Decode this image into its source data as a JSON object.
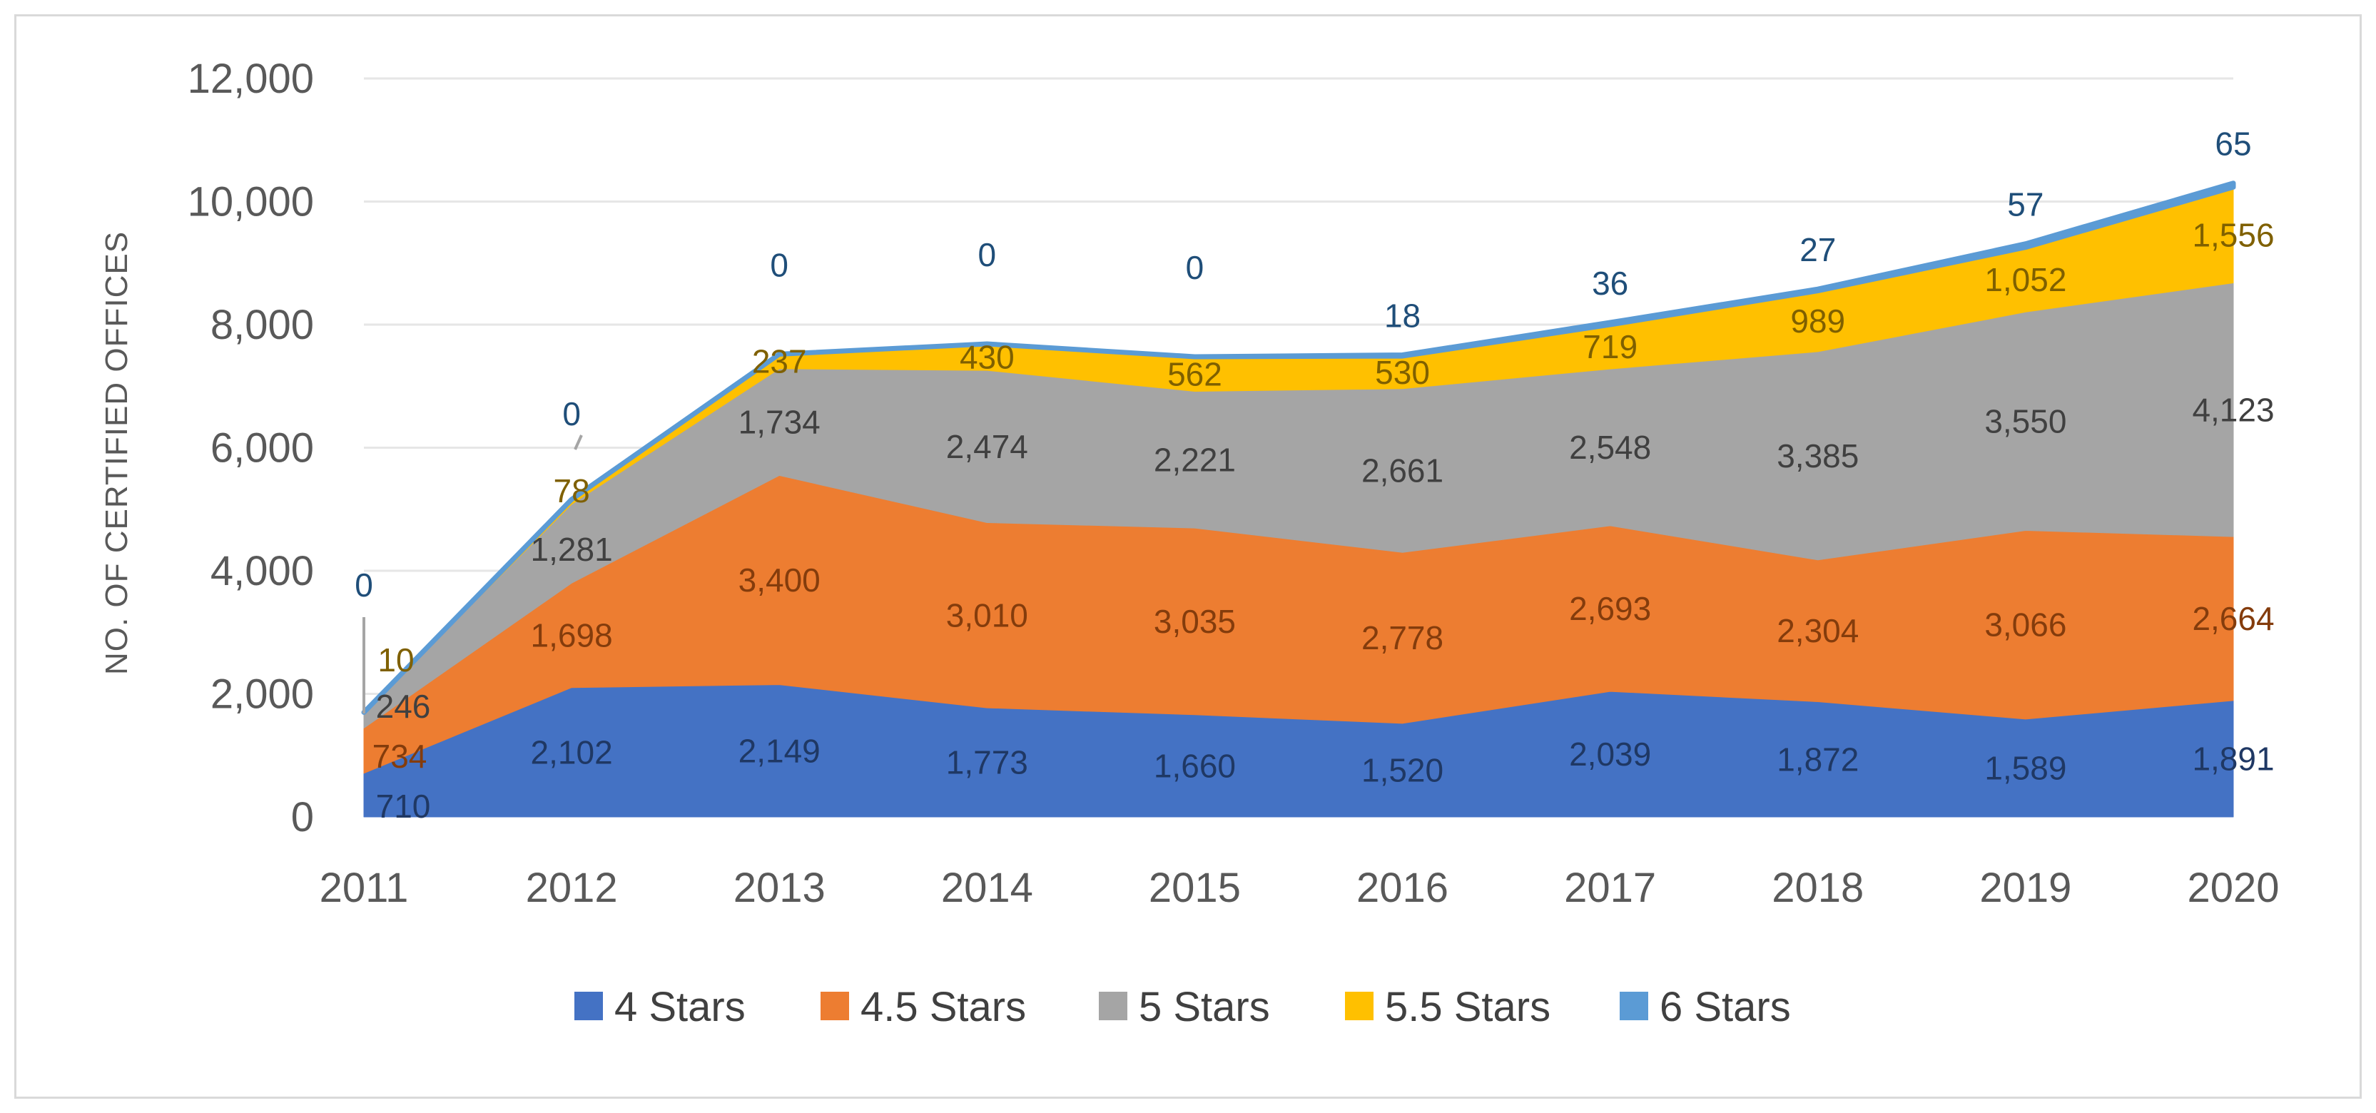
{
  "chart_data": {
    "type": "area",
    "stacked": true,
    "title": "",
    "xlabel": "",
    "ylabel": "NO. OF CERTIFIED OFFICES",
    "ylim": [
      0,
      12000
    ],
    "yticks": [
      0,
      2000,
      4000,
      6000,
      8000,
      10000,
      12000
    ],
    "ytick_labels": [
      "0",
      "2,000",
      "4,000",
      "6,000",
      "8,000",
      "10,000",
      "12,000"
    ],
    "categories": [
      "2011",
      "2012",
      "2013",
      "2014",
      "2015",
      "2016",
      "2017",
      "2018",
      "2019",
      "2020"
    ],
    "grid": true,
    "legend_position": "bottom",
    "series": [
      {
        "name": "4 Stars",
        "color": "#4472C4",
        "label_color": "#1F3864",
        "values": [
          710,
          2102,
          2149,
          1773,
          1660,
          1520,
          2039,
          1872,
          1589,
          1891
        ],
        "labels": [
          "710",
          "2,102",
          "2,149",
          "1,773",
          "1,660",
          "1,520",
          "2,039",
          "1,872",
          "1,589",
          "1,891"
        ]
      },
      {
        "name": "4.5 Stars",
        "color": "#ED7D31",
        "label_color": "#843C0C",
        "values": [
          734,
          1698,
          3400,
          3010,
          3035,
          2778,
          2693,
          2304,
          3066,
          2664
        ],
        "labels": [
          "734",
          "1,698",
          "3,400",
          "3,010",
          "3,035",
          "2,778",
          "2,693",
          "2,304",
          "3,066",
          "2,664"
        ]
      },
      {
        "name": "5 Stars",
        "color": "#A5A5A5",
        "label_color": "#404040",
        "values": [
          246,
          1281,
          1734,
          2474,
          2221,
          2661,
          2548,
          3385,
          3550,
          4123
        ],
        "labels": [
          "246",
          "1,281",
          "1,734",
          "2,474",
          "2,221",
          "2,661",
          "2,548",
          "3,385",
          "3,550",
          "4,123"
        ]
      },
      {
        "name": "5.5 Stars",
        "color": "#FFC000",
        "label_color": "#7F6000",
        "values": [
          10,
          78,
          237,
          430,
          562,
          530,
          719,
          989,
          1052,
          1556
        ],
        "labels": [
          "10",
          "78",
          "237",
          "430",
          "562",
          "530",
          "719",
          "989",
          "1,052",
          "1,556"
        ]
      },
      {
        "name": "6 Stars",
        "color": "#5B9BD5",
        "label_color": "#1F4E79",
        "values": [
          0,
          0,
          0,
          0,
          0,
          18,
          36,
          27,
          57,
          65
        ],
        "labels": [
          "0",
          "0",
          "0",
          "0",
          "0",
          "18",
          "36",
          "27",
          "57",
          "65"
        ]
      }
    ]
  }
}
